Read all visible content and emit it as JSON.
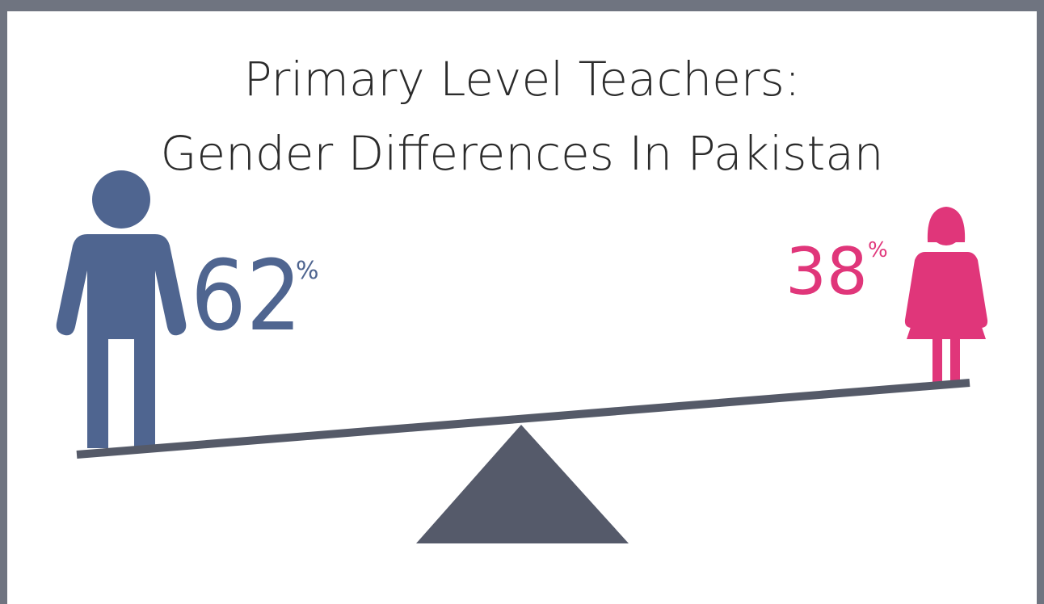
{
  "title": {
    "line1": "Primary Level Teachers:",
    "line2": "Gender Differences In Pakistan"
  },
  "male": {
    "value": "62",
    "unit": "%"
  },
  "female": {
    "value": "38",
    "unit": "%"
  }
}
